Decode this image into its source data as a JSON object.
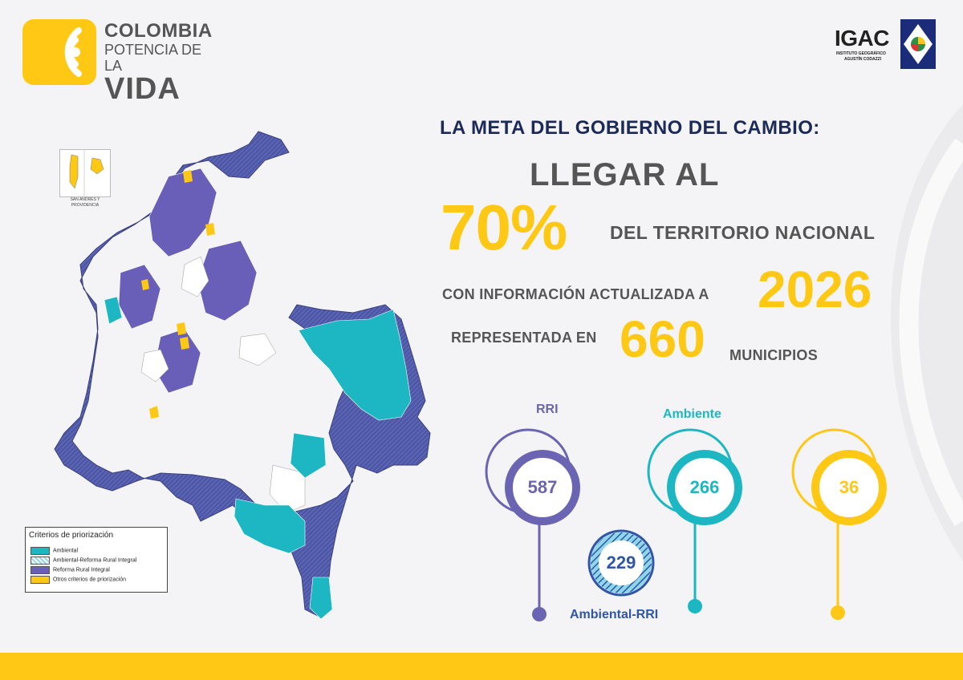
{
  "brand": {
    "line1": "COLOMBIA",
    "line2": "POTENCIA DE LA",
    "line3": "VIDA"
  },
  "igac": {
    "name": "IGAC",
    "sub1": "INSTITUTO GEOGRÁFICO",
    "sub2": "AGUSTÍN CODAZZI"
  },
  "map": {
    "inset_label": "SAN ANDRES Y\nPROVIDENCIA",
    "legend": {
      "title": "Criterios de priorización",
      "items": [
        {
          "label": "Ambiental",
          "color": "#1db7c4"
        },
        {
          "label": "Ambiental-Reforma Rural Integral",
          "color": "#8fd6e8"
        },
        {
          "label": "Reforma Rural Integral",
          "color": "#6a5fb8"
        },
        {
          "label": "Otros criterios de priorización",
          "color": "#ffc814"
        }
      ]
    }
  },
  "headline": {
    "meta": "LA META  DEL GOBIERNO DEL CAMBIO:",
    "llegar": "LLEGAR AL",
    "percent": "70%",
    "territorio": "DEL TERRITORIO NACIONAL",
    "con_info": "CON INFORMACIÓN ACTUALIZADA A",
    "year": "2026",
    "representada": "REPRESENTADA EN",
    "municipios_count": "660",
    "municipios": "MUNICIPIOS"
  },
  "stats": {
    "rri": {
      "label": "RRI",
      "value": "587",
      "color": "#6a64b3"
    },
    "ambiente": {
      "label": "Ambiente",
      "value": "266",
      "color": "#1db7c4"
    },
    "otros": {
      "value": "36",
      "color": "#ffc814"
    },
    "ambiental_rri": {
      "label": "Ambiental-RRI",
      "value": "229",
      "color": "#2f56a8"
    }
  },
  "colors": {
    "yellow": "#ffc814",
    "navy": "#1c2a5a",
    "gray": "#555555"
  }
}
